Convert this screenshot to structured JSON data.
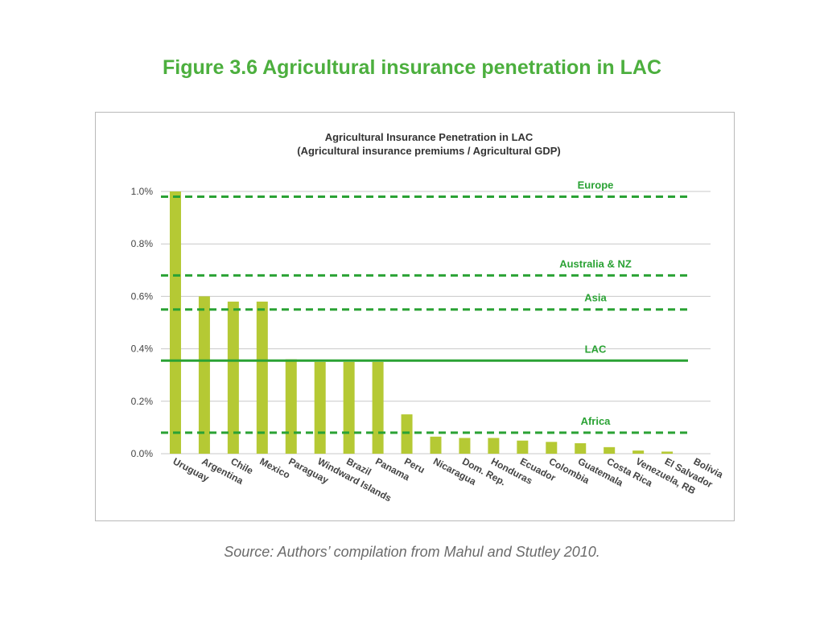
{
  "figure_title": "Figure 3.6 Agricultural insurance penetration in LAC",
  "source_note": "Source: Authors’ compilation from Mahul and Stutley 2010.",
  "colors": {
    "title_green": "#4caf3e",
    "bar_fill": "#b5c934",
    "reference_line": "#2aa234",
    "grid": "#c8c8c8",
    "axis_text": "#444444"
  },
  "chart_data": {
    "type": "bar",
    "title": "Agricultural Insurance Penetration in LAC",
    "subtitle": "(Agricultural insurance premiums / Agricultural GDP)",
    "xlabel": "",
    "ylabel": "",
    "ylim": [
      0,
      1.0
    ],
    "yticks": [
      "0.0%",
      "0.2%",
      "0.4%",
      "0.6%",
      "0.8%",
      "1.0%"
    ],
    "ytick_values": [
      0,
      0.2,
      0.4,
      0.6,
      0.8,
      1.0
    ],
    "grid": true,
    "categories": [
      "Uruguay",
      "Argentina",
      "Chile",
      "Mexico",
      "Paraguay",
      "Windward Islands",
      "Brazil",
      "Panama",
      "Peru",
      "Nicaragua",
      "Dom. Rep.",
      "Honduras",
      "Ecuador",
      "Colombia",
      "Guatemala",
      "Costa Rica",
      "Venezuela, RB",
      "El Salvador",
      "Bolivia"
    ],
    "values": [
      1.0,
      0.6,
      0.58,
      0.58,
      0.36,
      0.35,
      0.35,
      0.35,
      0.15,
      0.065,
      0.06,
      0.06,
      0.05,
      0.045,
      0.04,
      0.025,
      0.012,
      0.008,
      0.0
    ],
    "reference_lines": [
      {
        "name": "Europe",
        "value": 0.98,
        "style": "dashed"
      },
      {
        "name": "Australia & NZ",
        "value": 0.68,
        "style": "dashed"
      },
      {
        "name": "Asia",
        "value": 0.55,
        "style": "dashed"
      },
      {
        "name": "LAC",
        "value": 0.355,
        "style": "solid"
      },
      {
        "name": "Africa",
        "value": 0.08,
        "style": "dashed"
      }
    ]
  }
}
